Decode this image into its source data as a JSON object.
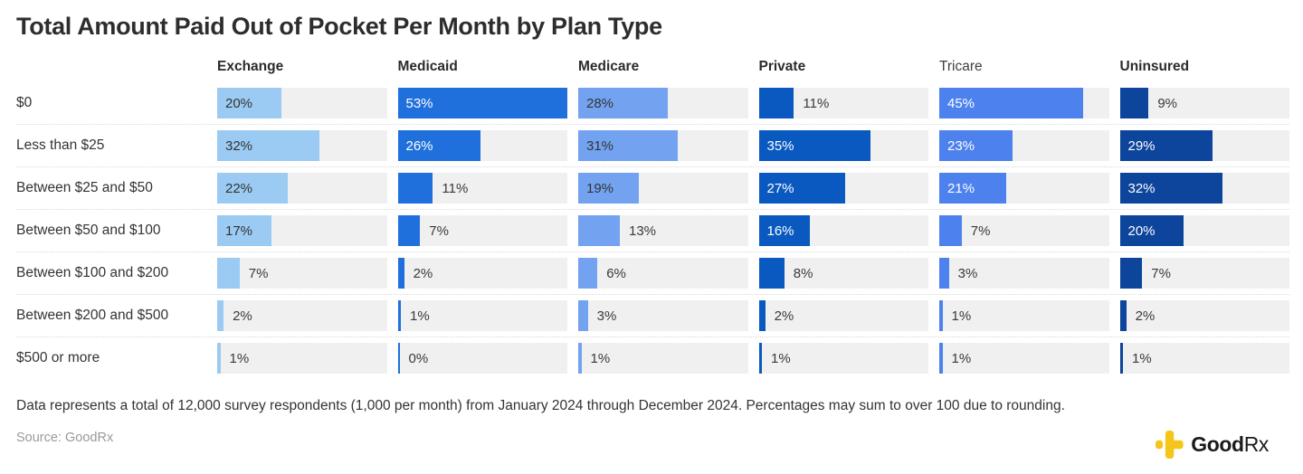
{
  "title": "Total Amount Paid Out of Pocket Per Month by Plan Type",
  "chart_data": {
    "type": "bar",
    "orientation": "horizontal",
    "title": "Total Amount Paid Out of Pocket Per Month by Plan Type",
    "categories": [
      "$0",
      "Less than $25",
      "Between $25 and $50",
      "Between $50 and $100",
      "Between $100 and $200",
      "Between $200 and $500",
      "$500 or more"
    ],
    "series": [
      {
        "name": "Exchange",
        "color": "#9BCBF3",
        "inside_label_color": "#333333",
        "bold_header": true,
        "values": [
          20,
          32,
          22,
          17,
          7,
          2,
          1
        ]
      },
      {
        "name": "Medicaid",
        "color": "#1F70DC",
        "inside_label_color": "#ffffff",
        "bold_header": true,
        "values": [
          53,
          26,
          11,
          7,
          2,
          1,
          0
        ]
      },
      {
        "name": "Medicare",
        "color": "#73A3F0",
        "inside_label_color": "#333333",
        "bold_header": true,
        "values": [
          28,
          31,
          19,
          13,
          6,
          3,
          1
        ]
      },
      {
        "name": "Private",
        "color": "#0959C1",
        "inside_label_color": "#ffffff",
        "bold_header": true,
        "values": [
          11,
          35,
          27,
          16,
          8,
          2,
          1
        ]
      },
      {
        "name": "Tricare",
        "color": "#4D82EE",
        "inside_label_color": "#ffffff",
        "bold_header": false,
        "values": [
          45,
          23,
          21,
          7,
          3,
          1,
          1
        ]
      },
      {
        "name": "Uninsured",
        "color": "#0C459B",
        "inside_label_color": "#ffffff",
        "bold_header": true,
        "values": [
          9,
          29,
          32,
          20,
          7,
          2,
          1
        ]
      }
    ],
    "value_suffix": "%",
    "axis_max": 53,
    "inside_label_min_value": 16,
    "track_color": "#f0f0f0",
    "grid": "dotted-row-separators",
    "legend_position": "column-headers"
  },
  "footer": {
    "note": "Data represents a total of 12,000 survey respondents (1,000 per month) from January 2024 through December 2024. Percentages may sum to over 100 due to rounding.",
    "source": "Source: GoodRx",
    "logo": {
      "name": "goodrx-logo",
      "text_bold": "Good",
      "text_light": "Rx",
      "mark_color": "#F6C51B"
    }
  }
}
